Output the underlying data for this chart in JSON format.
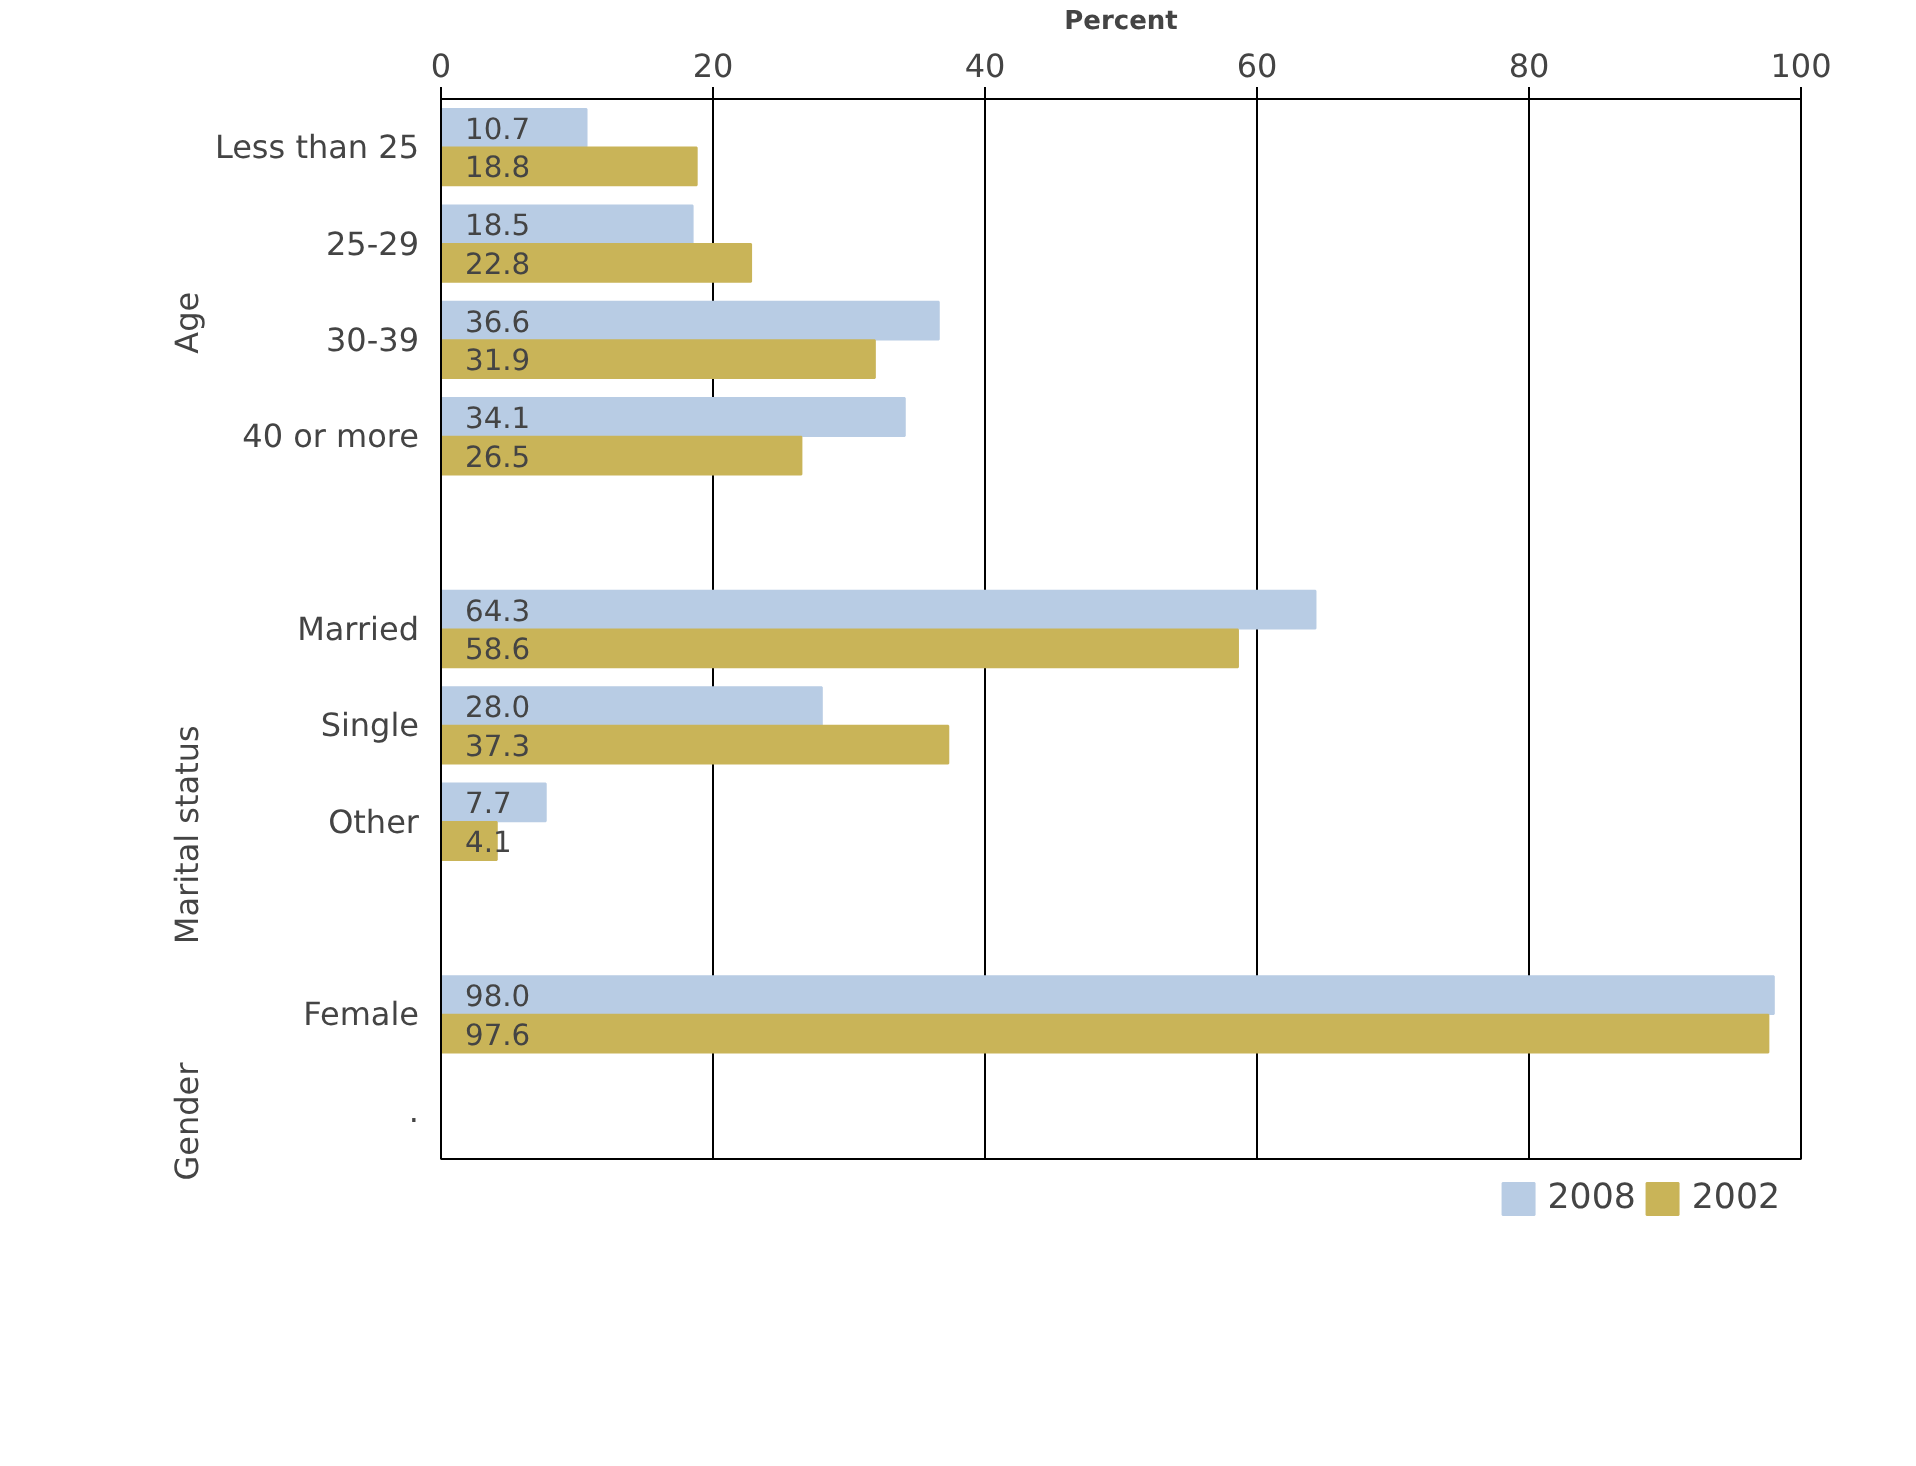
{
  "chart_data": {
    "type": "bar",
    "orientation": "horizontal",
    "xlabel": "Percent",
    "categories": [
      "Less than 25",
      "25-29",
      "30-39",
      "40 or more",
      null,
      "Married",
      "Single",
      "Other",
      null,
      "Female",
      "."
    ],
    "series": [
      {
        "name": "2008",
        "color": "#b8cce4",
        "values": [
          10.7,
          18.5,
          36.6,
          34.1,
          null,
          64.3,
          28.0,
          7.7,
          null,
          98.0,
          null
        ],
        "value_labels": [
          "10.7",
          "18.5",
          "36.6",
          "34.1",
          null,
          "64.3",
          "28.0",
          "7.7",
          null,
          "98.0",
          null
        ]
      },
      {
        "name": "2002",
        "color": "#c9b458",
        "values": [
          18.8,
          22.8,
          31.9,
          26.5,
          null,
          58.6,
          37.3,
          4.1,
          null,
          97.6,
          null
        ],
        "value_labels": [
          "18.8",
          "22.8",
          "31.9",
          "26.5",
          null,
          "58.6",
          "37.3",
          "4.1",
          null,
          "97.6",
          null
        ]
      }
    ],
    "xlim": [
      0,
      100
    ],
    "xticks": [
      0,
      20,
      40,
      60,
      80,
      100
    ],
    "grid": "x",
    "legend": "bottom",
    "annotations": [
      "Age",
      "Marital status",
      "Gender"
    ]
  }
}
